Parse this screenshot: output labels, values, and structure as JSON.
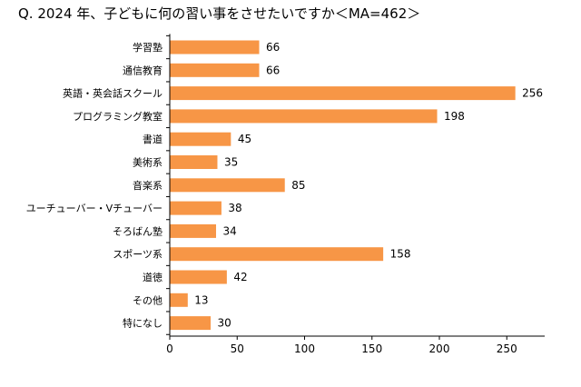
{
  "chart_data": {
    "type": "bar",
    "orientation": "horizontal",
    "title": "Q. 2024 年、子どもに何の習い事をさせたいですか＜MA=462＞",
    "categories": [
      "学習塾",
      "通信教育",
      "英語・英会話スクール",
      "プログラミング教室",
      "書道",
      "美術系",
      "音楽系",
      "ユーチューバー・Vチューバー",
      "そろばん塾",
      "スポーツ系",
      "道徳",
      "その他",
      "特になし"
    ],
    "values": [
      66,
      66,
      256,
      198,
      45,
      35,
      85,
      38,
      34,
      158,
      42,
      13,
      30
    ],
    "xlim": [
      0,
      250
    ],
    "xticks": [
      0,
      50,
      100,
      150,
      200,
      250
    ],
    "xlabel": "",
    "ylabel": "",
    "grid": false,
    "data_labels": true,
    "bar_color": "#F79646"
  }
}
